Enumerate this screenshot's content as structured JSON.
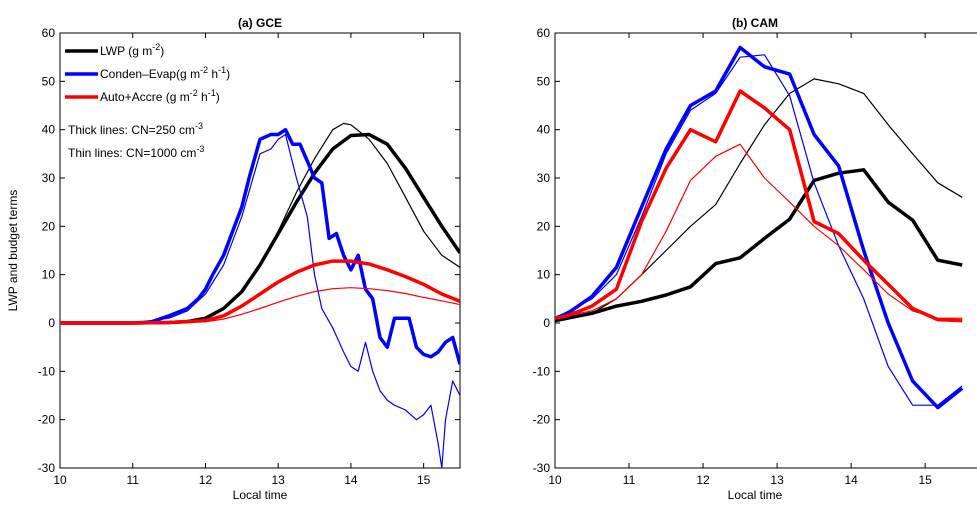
{
  "chart_data": [
    {
      "type": "line",
      "title": "(a) GCE",
      "xlabel": "Local time",
      "ylabel": "LWP and budget terms",
      "xlim": [
        10,
        15.5
      ],
      "ylim": [
        -30,
        60
      ],
      "xticks": [
        10,
        11,
        12,
        13,
        14,
        15
      ],
      "yticks": [
        -30,
        -20,
        -10,
        0,
        10,
        20,
        30,
        40,
        50,
        60
      ],
      "grid": false,
      "legend": {
        "placement": "top-left",
        "entries": [
          {
            "color": "#000000",
            "main": "LWP (g m",
            "sup": "-2",
            "tail": ")"
          },
          {
            "color": "#0000ff",
            "main": "Conden–Evap(g m",
            "sup": "-2",
            "mid": " h",
            "sup2": "-1",
            "tail": ")"
          },
          {
            "color": "#ff0000",
            "main": "Auto+Accre (g m",
            "sup": "-2",
            "mid": " h",
            "sup2": "-1",
            "tail": ")"
          }
        ],
        "notes": [
          {
            "main": "Thick lines: CN=250 cm",
            "sup": "-3"
          },
          {
            "main": "Thin lines: CN=1000 cm",
            "sup": "-3"
          }
        ]
      },
      "series": [
        {
          "color": "#000000",
          "width": "thick",
          "x": [
            10,
            10.5,
            11,
            11.5,
            11.75,
            12,
            12.25,
            12.5,
            12.75,
            13,
            13.25,
            13.5,
            13.75,
            14,
            14.25,
            14.5,
            14.75,
            15,
            15.25,
            15.5
          ],
          "y": [
            0,
            0,
            0,
            0.1,
            0.3,
            1,
            3,
            6.5,
            12,
            18.5,
            25,
            31,
            36,
            38.8,
            39,
            37,
            32,
            26,
            20,
            14.5
          ]
        },
        {
          "color": "#000000",
          "width": "thin",
          "x": [
            10,
            11,
            11.5,
            11.75,
            12,
            12.25,
            12.5,
            12.75,
            13,
            13.25,
            13.5,
            13.75,
            13.9,
            14,
            14.25,
            14.5,
            14.75,
            15,
            15.25,
            15.5
          ],
          "y": [
            0,
            0,
            0.1,
            0.3,
            1,
            3,
            6.5,
            12,
            19,
            27,
            34,
            40,
            41.3,
            41,
            38,
            33,
            26,
            19,
            14,
            11.5
          ]
        },
        {
          "color": "#0000ff",
          "width": "thick",
          "x": [
            10,
            11,
            11.25,
            11.5,
            11.75,
            11.9,
            12,
            12.1,
            12.25,
            12.4,
            12.5,
            12.6,
            12.75,
            12.9,
            13,
            13.1,
            13.2,
            13.3,
            13.4,
            13.5,
            13.6,
            13.7,
            13.8,
            13.9,
            14,
            14.1,
            14.2,
            14.3,
            14.4,
            14.5,
            14.6,
            14.7,
            14.8,
            14.9,
            15,
            15.1,
            15.2,
            15.3,
            15.4,
            15.5
          ],
          "y": [
            0,
            0,
            0.2,
            1.5,
            3,
            5,
            7,
            10,
            14,
            20,
            24,
            30,
            38,
            39,
            39,
            40,
            37,
            37,
            33.5,
            30,
            29,
            17.5,
            18.5,
            14,
            11,
            14,
            7,
            5,
            -3,
            -5,
            1,
            1,
            1,
            -5,
            -6.5,
            -7,
            -6,
            -4,
            -3,
            -8.5
          ]
        },
        {
          "color": "#0000ff",
          "width": "thin",
          "x": [
            10,
            11,
            11.5,
            11.75,
            12,
            12.25,
            12.5,
            12.75,
            12.9,
            13,
            13.1,
            13.25,
            13.4,
            13.5,
            13.6,
            13.75,
            13.9,
            14,
            14.1,
            14.2,
            14.3,
            14.4,
            14.5,
            14.6,
            14.75,
            14.9,
            15,
            15.1,
            15.2,
            15.25,
            15.3,
            15.4,
            15.5
          ],
          "y": [
            0,
            0,
            1,
            2.5,
            6,
            12,
            22,
            35,
            36,
            38,
            39,
            30,
            22,
            10,
            3,
            -1,
            -6,
            -9,
            -10,
            -4,
            -10,
            -14,
            -16,
            -17,
            -18,
            -20,
            -19,
            -17,
            -25,
            -30,
            -20,
            -12,
            -15
          ]
        },
        {
          "color": "#ff0000",
          "width": "thick",
          "x": [
            10,
            11,
            11.5,
            12,
            12.25,
            12.5,
            12.75,
            13,
            13.25,
            13.5,
            13.75,
            14,
            14.25,
            14.5,
            14.75,
            15,
            15.25,
            15.5
          ],
          "y": [
            0,
            0,
            0.1,
            0.5,
            1.5,
            3.5,
            6,
            8.5,
            10.5,
            12,
            12.8,
            12.8,
            12.2,
            11,
            9.6,
            8,
            6,
            4.5
          ]
        },
        {
          "color": "#ff0000",
          "width": "thin",
          "x": [
            10,
            11,
            11.5,
            12,
            12.25,
            12.5,
            12.75,
            13,
            13.25,
            13.5,
            13.75,
            14,
            14.25,
            14.5,
            14.75,
            15,
            15.25,
            15.5
          ],
          "y": [
            0,
            0,
            0.1,
            0.3,
            0.8,
            1.8,
            3,
            4.3,
            5.5,
            6.5,
            7.1,
            7.3,
            7.1,
            6.7,
            6.1,
            5.3,
            4.6,
            3.8
          ]
        }
      ]
    },
    {
      "type": "line",
      "title": "(b) CAM",
      "xlabel": "Local time",
      "ylabel": "",
      "xlim": [
        10,
        15.7
      ],
      "ylim": [
        -30,
        60
      ],
      "xticks": [
        10,
        11,
        12,
        13,
        14,
        15
      ],
      "yticks": [
        -30,
        -20,
        -10,
        0,
        10,
        20,
        30,
        40,
        50,
        60
      ],
      "grid": false,
      "series": [
        {
          "color": "#000000",
          "width": "thick",
          "x": [
            10,
            10.17,
            10.5,
            10.83,
            11.17,
            11.5,
            11.83,
            12.17,
            12.5,
            12.83,
            13.17,
            13.5,
            13.83,
            14.17,
            14.5,
            14.83,
            15.17,
            15.5
          ],
          "y": [
            0.5,
            1,
            2,
            3.5,
            4.5,
            5.8,
            7.5,
            12.3,
            13.5,
            17.5,
            21.5,
            29.5,
            31,
            31.7,
            25,
            21.3,
            13,
            12
          ]
        },
        {
          "color": "#000000",
          "width": "thin",
          "x": [
            10,
            10.5,
            10.83,
            11.17,
            11.5,
            11.83,
            12.17,
            12.5,
            12.83,
            13.17,
            13.5,
            13.83,
            14.17,
            14.5,
            14.83,
            15.17,
            15.5
          ],
          "y": [
            0.5,
            2,
            5,
            10,
            15,
            20,
            24.5,
            33,
            41,
            47.5,
            50.5,
            49.5,
            47.5,
            41,
            35,
            29,
            26
          ]
        },
        {
          "color": "#0000ff",
          "width": "thick",
          "x": [
            10,
            10.17,
            10.5,
            10.83,
            11.17,
            11.5,
            11.83,
            12.17,
            12.5,
            12.83,
            13.17,
            13.5,
            13.83,
            14.17,
            14.5,
            14.83,
            15.17,
            15.5
          ],
          "y": [
            1,
            2,
            5.5,
            11.5,
            24,
            36,
            45,
            48,
            57,
            53,
            51.5,
            39,
            32.5,
            15,
            0,
            -12,
            -17.5,
            -13.5
          ]
        },
        {
          "color": "#0000ff",
          "width": "thin",
          "x": [
            10,
            10.5,
            10.83,
            11.17,
            11.5,
            11.83,
            12.17,
            12.5,
            12.83,
            13.17,
            13.5,
            13.83,
            14.17,
            14.5,
            14.83,
            15.17,
            15.5
          ],
          "y": [
            1,
            5,
            10,
            22,
            35,
            44,
            47.5,
            55,
            55.5,
            47,
            29,
            16,
            5,
            -9,
            -17,
            -17,
            -13
          ]
        },
        {
          "color": "#ff0000",
          "width": "thick",
          "x": [
            10,
            10.17,
            10.5,
            10.83,
            11.17,
            11.5,
            11.83,
            12.17,
            12.5,
            12.83,
            13.17,
            13.5,
            13.83,
            14.17,
            14.5,
            14.83,
            15.17,
            15.5
          ],
          "y": [
            1,
            1.5,
            3.5,
            7,
            21,
            32,
            40,
            37.5,
            48,
            44.5,
            40,
            21,
            18.5,
            13,
            8,
            3,
            0.7,
            0.5
          ]
        },
        {
          "color": "#ff0000",
          "width": "thin",
          "x": [
            10,
            10.5,
            10.83,
            11.17,
            11.5,
            11.83,
            12.17,
            12.5,
            12.83,
            13.17,
            13.5,
            13.83,
            14.17,
            14.5,
            14.83,
            15.17,
            15.5
          ],
          "y": [
            1,
            2.5,
            5,
            10,
            19,
            29.5,
            34.5,
            37,
            30,
            25,
            20,
            16,
            11,
            6,
            2.5,
            1,
            1
          ]
        }
      ]
    }
  ]
}
